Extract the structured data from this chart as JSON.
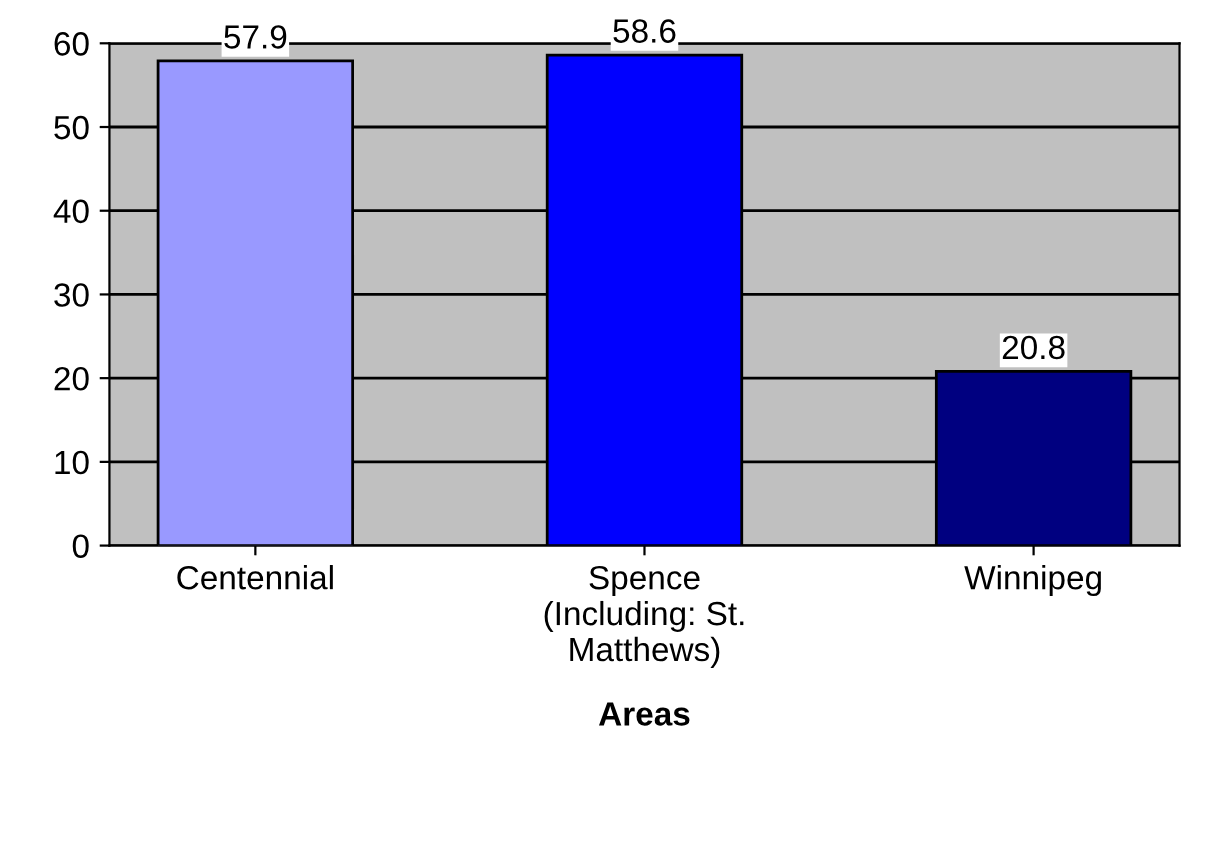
{
  "chart_data": {
    "type": "bar",
    "xlabel": "Areas",
    "categories": [
      "Centennial",
      "Spence\n(Including: St.\nMatthews)",
      "Winnipeg"
    ],
    "values": [
      57.9,
      58.6,
      20.8
    ],
    "colors": [
      "#9999ff",
      "#0000ff",
      "#000080"
    ],
    "ylim": [
      0,
      60
    ],
    "yticks": [
      0,
      10,
      20,
      30,
      40,
      50,
      60
    ],
    "grid": "y",
    "data_labels": true
  }
}
